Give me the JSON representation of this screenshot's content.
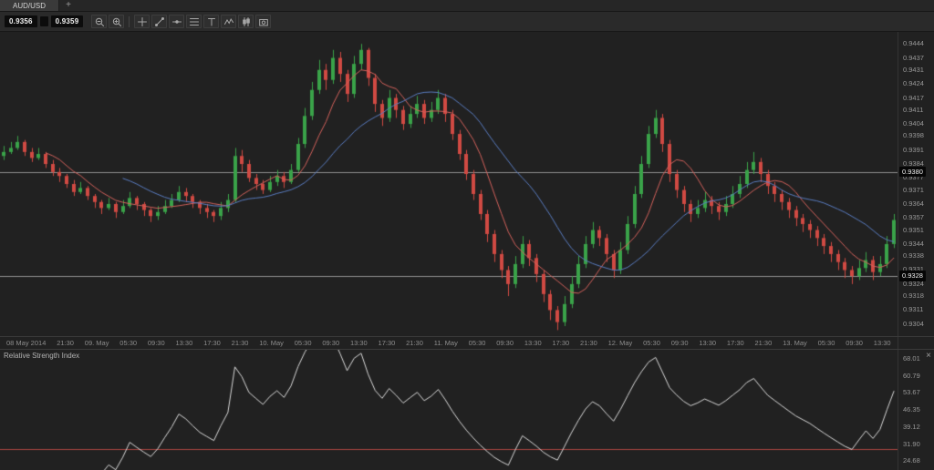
{
  "tabbar": {
    "tabs": [
      {
        "label": "AUD/USD",
        "active": true
      }
    ],
    "add_label": "+"
  },
  "toolbar": {
    "bid": "0.9356",
    "ask": "0.9359",
    "icons": [
      "zoom-out",
      "zoom-in",
      "crosshair",
      "trend-line",
      "horizontal-line",
      "fibonacci",
      "text-tool",
      "indicators",
      "candlestick-style",
      "snapshot"
    ]
  },
  "ui": {
    "close_glyph": "×"
  },
  "colors": {
    "background": "#212121",
    "panel_border": "#3a3a3a",
    "axis_text": "#989898",
    "candle_up": "#3aa349",
    "candle_down": "#d04a43",
    "ma_fast": "#d4625c",
    "ma_slow": "#5a7dc2",
    "hline": "#909090",
    "rsi_line": "#d9d9d9",
    "rsi_level": "#a84440"
  },
  "chart_data": [
    {
      "type": "candlestick",
      "symbol": "AUD/USD",
      "ylim": [
        0.9298,
        0.945
      ],
      "y_ticks": [
        "0.9444",
        "0.9437",
        "0.9431",
        "0.9424",
        "0.9417",
        "0.9411",
        "0.9404",
        "0.9398",
        "0.9391",
        "0.9384",
        "0.9377",
        "0.9371",
        "0.9364",
        "0.9357",
        "0.9351",
        "0.9344",
        "0.9338",
        "0.9331",
        "0.9324",
        "0.9318",
        "0.9311",
        "0.9304"
      ],
      "x_labels": [
        "08 May 2014",
        "21:30",
        "09. May",
        "05:30",
        "09:30",
        "13:30",
        "17:30",
        "21:30",
        "10. May",
        "05:30",
        "09:30",
        "13:30",
        "17:30",
        "21:30",
        "11. May",
        "05:30",
        "09:30",
        "13:30",
        "17:30",
        "21:30",
        "12. May",
        "05:30",
        "09:30",
        "13:30",
        "17:30",
        "21:30",
        "13. May",
        "05:30",
        "09:30",
        "13:30"
      ],
      "hlines": [
        {
          "value": 0.938,
          "label": "0.9380"
        },
        {
          "value": 0.9328,
          "label": "0.9328"
        }
      ],
      "overlays": [
        {
          "name": "ma-fast",
          "type": "sma",
          "period": 7,
          "color": "#d4625c"
        },
        {
          "name": "ma-slow",
          "type": "sma",
          "period": 18,
          "color": "#5a7dc2"
        }
      ],
      "candles": [
        [
          0.9388,
          0.9393,
          0.9386,
          0.939
        ],
        [
          0.939,
          0.9395,
          0.9389,
          0.9392
        ],
        [
          0.9392,
          0.9398,
          0.9391,
          0.9395
        ],
        [
          0.9395,
          0.9396,
          0.9388,
          0.939
        ],
        [
          0.939,
          0.9392,
          0.9385,
          0.9387
        ],
        [
          0.9387,
          0.9392,
          0.9386,
          0.9389
        ],
        [
          0.9389,
          0.939,
          0.9382,
          0.9384
        ],
        [
          0.9384,
          0.9386,
          0.9378,
          0.938
        ],
        [
          0.938,
          0.9382,
          0.9375,
          0.9378
        ],
        [
          0.9378,
          0.9379,
          0.9372,
          0.9374
        ],
        [
          0.9374,
          0.9376,
          0.9368,
          0.937
        ],
        [
          0.937,
          0.9375,
          0.9369,
          0.9372
        ],
        [
          0.9372,
          0.9373,
          0.9366,
          0.9368
        ],
        [
          0.9368,
          0.9369,
          0.9362,
          0.9365
        ],
        [
          0.9365,
          0.9366,
          0.9359,
          0.9362
        ],
        [
          0.9362,
          0.9367,
          0.9361,
          0.9364
        ],
        [
          0.9364,
          0.9365,
          0.9357,
          0.936
        ],
        [
          0.936,
          0.9366,
          0.9359,
          0.9363
        ],
        [
          0.9363,
          0.937,
          0.9362,
          0.9367
        ],
        [
          0.9367,
          0.9368,
          0.9361,
          0.9364
        ],
        [
          0.9364,
          0.9365,
          0.9358,
          0.9361
        ],
        [
          0.9361,
          0.9362,
          0.9355,
          0.9358
        ],
        [
          0.9358,
          0.9363,
          0.9356,
          0.936
        ],
        [
          0.936,
          0.9366,
          0.9359,
          0.9363
        ],
        [
          0.9363,
          0.9369,
          0.9362,
          0.9366
        ],
        [
          0.9366,
          0.9373,
          0.9365,
          0.937
        ],
        [
          0.937,
          0.9372,
          0.9365,
          0.9368
        ],
        [
          0.9368,
          0.9369,
          0.9362,
          0.9365
        ],
        [
          0.9365,
          0.9366,
          0.9359,
          0.9362
        ],
        [
          0.9362,
          0.9364,
          0.9357,
          0.936
        ],
        [
          0.936,
          0.9361,
          0.9355,
          0.9358
        ],
        [
          0.9358,
          0.9365,
          0.9356,
          0.9362
        ],
        [
          0.9362,
          0.9369,
          0.936,
          0.9366
        ],
        [
          0.9366,
          0.9392,
          0.9365,
          0.9388
        ],
        [
          0.9388,
          0.9391,
          0.938,
          0.9384
        ],
        [
          0.9384,
          0.9386,
          0.9375,
          0.9377
        ],
        [
          0.9377,
          0.9379,
          0.9371,
          0.9374
        ],
        [
          0.9374,
          0.9376,
          0.9369,
          0.9371
        ],
        [
          0.9371,
          0.9378,
          0.937,
          0.9375
        ],
        [
          0.9375,
          0.9381,
          0.9373,
          0.9378
        ],
        [
          0.9378,
          0.938,
          0.9372,
          0.9375
        ],
        [
          0.9375,
          0.9384,
          0.9374,
          0.9381
        ],
        [
          0.9381,
          0.9397,
          0.938,
          0.9394
        ],
        [
          0.9394,
          0.9412,
          0.9392,
          0.9408
        ],
        [
          0.9408,
          0.9425,
          0.9406,
          0.9421
        ],
        [
          0.9421,
          0.9436,
          0.9419,
          0.9431
        ],
        [
          0.9431,
          0.9434,
          0.9421,
          0.9426
        ],
        [
          0.9426,
          0.9441,
          0.9424,
          0.9437
        ],
        [
          0.9437,
          0.944,
          0.9425,
          0.9429
        ],
        [
          0.9429,
          0.9431,
          0.9415,
          0.9419
        ],
        [
          0.9419,
          0.9438,
          0.9417,
          0.9434
        ],
        [
          0.9434,
          0.9444,
          0.9431,
          0.9441
        ],
        [
          0.9441,
          0.9442,
          0.9423,
          0.9427
        ],
        [
          0.9427,
          0.9429,
          0.941,
          0.9414
        ],
        [
          0.9414,
          0.9416,
          0.9403,
          0.9407
        ],
        [
          0.9407,
          0.9421,
          0.9405,
          0.9417
        ],
        [
          0.9417,
          0.9419,
          0.9407,
          0.9411
        ],
        [
          0.9411,
          0.9413,
          0.9401,
          0.9404
        ],
        [
          0.9404,
          0.9413,
          0.9402,
          0.9409
        ],
        [
          0.9409,
          0.9418,
          0.9407,
          0.9414
        ],
        [
          0.9414,
          0.9416,
          0.9404,
          0.9407
        ],
        [
          0.9407,
          0.9415,
          0.9405,
          0.9411
        ],
        [
          0.9411,
          0.9421,
          0.9409,
          0.9417
        ],
        [
          0.9417,
          0.9419,
          0.9405,
          0.9409
        ],
        [
          0.9409,
          0.9411,
          0.9396,
          0.9399
        ],
        [
          0.9399,
          0.9401,
          0.9386,
          0.9389
        ],
        [
          0.9389,
          0.9391,
          0.9376,
          0.9379
        ],
        [
          0.9379,
          0.9381,
          0.9366,
          0.9369
        ],
        [
          0.9369,
          0.9371,
          0.9356,
          0.9359
        ],
        [
          0.9359,
          0.9361,
          0.9345,
          0.9349
        ],
        [
          0.9349,
          0.9351,
          0.9335,
          0.9339
        ],
        [
          0.9339,
          0.9341,
          0.9327,
          0.9331
        ],
        [
          0.9331,
          0.9333,
          0.9318,
          0.9324
        ],
        [
          0.9324,
          0.9338,
          0.9322,
          0.9334
        ],
        [
          0.9334,
          0.9348,
          0.9332,
          0.9344
        ],
        [
          0.9344,
          0.9346,
          0.9333,
          0.9337
        ],
        [
          0.9337,
          0.9339,
          0.9325,
          0.9329
        ],
        [
          0.9329,
          0.9331,
          0.9315,
          0.9319
        ],
        [
          0.9319,
          0.9321,
          0.9306,
          0.9311
        ],
        [
          0.9311,
          0.9313,
          0.9301,
          0.9305
        ],
        [
          0.9305,
          0.9318,
          0.9303,
          0.9314
        ],
        [
          0.9314,
          0.9328,
          0.9312,
          0.9324
        ],
        [
          0.9324,
          0.9338,
          0.9322,
          0.9334
        ],
        [
          0.9334,
          0.9348,
          0.9332,
          0.9344
        ],
        [
          0.9344,
          0.9355,
          0.9342,
          0.9351
        ],
        [
          0.9351,
          0.9353,
          0.9343,
          0.9347
        ],
        [
          0.9347,
          0.9349,
          0.9335,
          0.9339
        ],
        [
          0.9339,
          0.9341,
          0.9327,
          0.9331
        ],
        [
          0.9331,
          0.9345,
          0.9329,
          0.9341
        ],
        [
          0.9341,
          0.9358,
          0.9339,
          0.9354
        ],
        [
          0.9354,
          0.9373,
          0.9352,
          0.9369
        ],
        [
          0.9369,
          0.9388,
          0.9367,
          0.9384
        ],
        [
          0.9384,
          0.9403,
          0.9382,
          0.9399
        ],
        [
          0.9399,
          0.9411,
          0.9397,
          0.9407
        ],
        [
          0.9407,
          0.9409,
          0.939,
          0.9394
        ],
        [
          0.9394,
          0.9396,
          0.9375,
          0.9379
        ],
        [
          0.9379,
          0.9381,
          0.9367,
          0.9371
        ],
        [
          0.9371,
          0.9373,
          0.936,
          0.9364
        ],
        [
          0.9364,
          0.9366,
          0.9355,
          0.9359
        ],
        [
          0.9359,
          0.9366,
          0.9357,
          0.9362
        ],
        [
          0.9362,
          0.937,
          0.936,
          0.9366
        ],
        [
          0.9366,
          0.9368,
          0.9359,
          0.9363
        ],
        [
          0.9363,
          0.9365,
          0.9356,
          0.936
        ],
        [
          0.936,
          0.9368,
          0.9358,
          0.9364
        ],
        [
          0.9364,
          0.9373,
          0.9362,
          0.9369
        ],
        [
          0.9369,
          0.9378,
          0.9367,
          0.9374
        ],
        [
          0.9374,
          0.9385,
          0.9372,
          0.9381
        ],
        [
          0.9381,
          0.939,
          0.9379,
          0.9385
        ],
        [
          0.9385,
          0.9387,
          0.9375,
          0.9379
        ],
        [
          0.9379,
          0.9381,
          0.9369,
          0.9373
        ],
        [
          0.9373,
          0.9375,
          0.9365,
          0.9369
        ],
        [
          0.9369,
          0.9371,
          0.9361,
          0.9365
        ],
        [
          0.9365,
          0.9367,
          0.9357,
          0.9361
        ],
        [
          0.9361,
          0.9363,
          0.9353,
          0.9357
        ],
        [
          0.9357,
          0.9359,
          0.935,
          0.9354
        ],
        [
          0.9354,
          0.9356,
          0.9347,
          0.9351
        ],
        [
          0.9351,
          0.9353,
          0.9343,
          0.9347
        ],
        [
          0.9347,
          0.9349,
          0.9339,
          0.9343
        ],
        [
          0.9343,
          0.9345,
          0.9335,
          0.9339
        ],
        [
          0.9339,
          0.9341,
          0.9331,
          0.9335
        ],
        [
          0.9335,
          0.9337,
          0.9327,
          0.9331
        ],
        [
          0.9331,
          0.9333,
          0.9324,
          0.9328
        ],
        [
          0.9328,
          0.9336,
          0.9326,
          0.9332
        ],
        [
          0.9332,
          0.934,
          0.933,
          0.9336
        ],
        [
          0.9336,
          0.9338,
          0.9326,
          0.933
        ],
        [
          0.933,
          0.9338,
          0.9328,
          0.9334
        ],
        [
          0.9334,
          0.9348,
          0.9332,
          0.9344
        ],
        [
          0.9344,
          0.9359,
          0.9342,
          0.9356
        ]
      ]
    },
    {
      "type": "line",
      "title": "Relative Strength Index",
      "source": "rsi-of-closes",
      "period": 14,
      "ylim": [
        21,
        72
      ],
      "y_ticks": [
        "68.01",
        "60.79",
        "53.67",
        "46.35",
        "39.12",
        "31.90",
        "24.68"
      ],
      "levels": [
        {
          "value": 30,
          "color": "#a84440"
        }
      ],
      "line_color": "#d9d9d9"
    }
  ]
}
